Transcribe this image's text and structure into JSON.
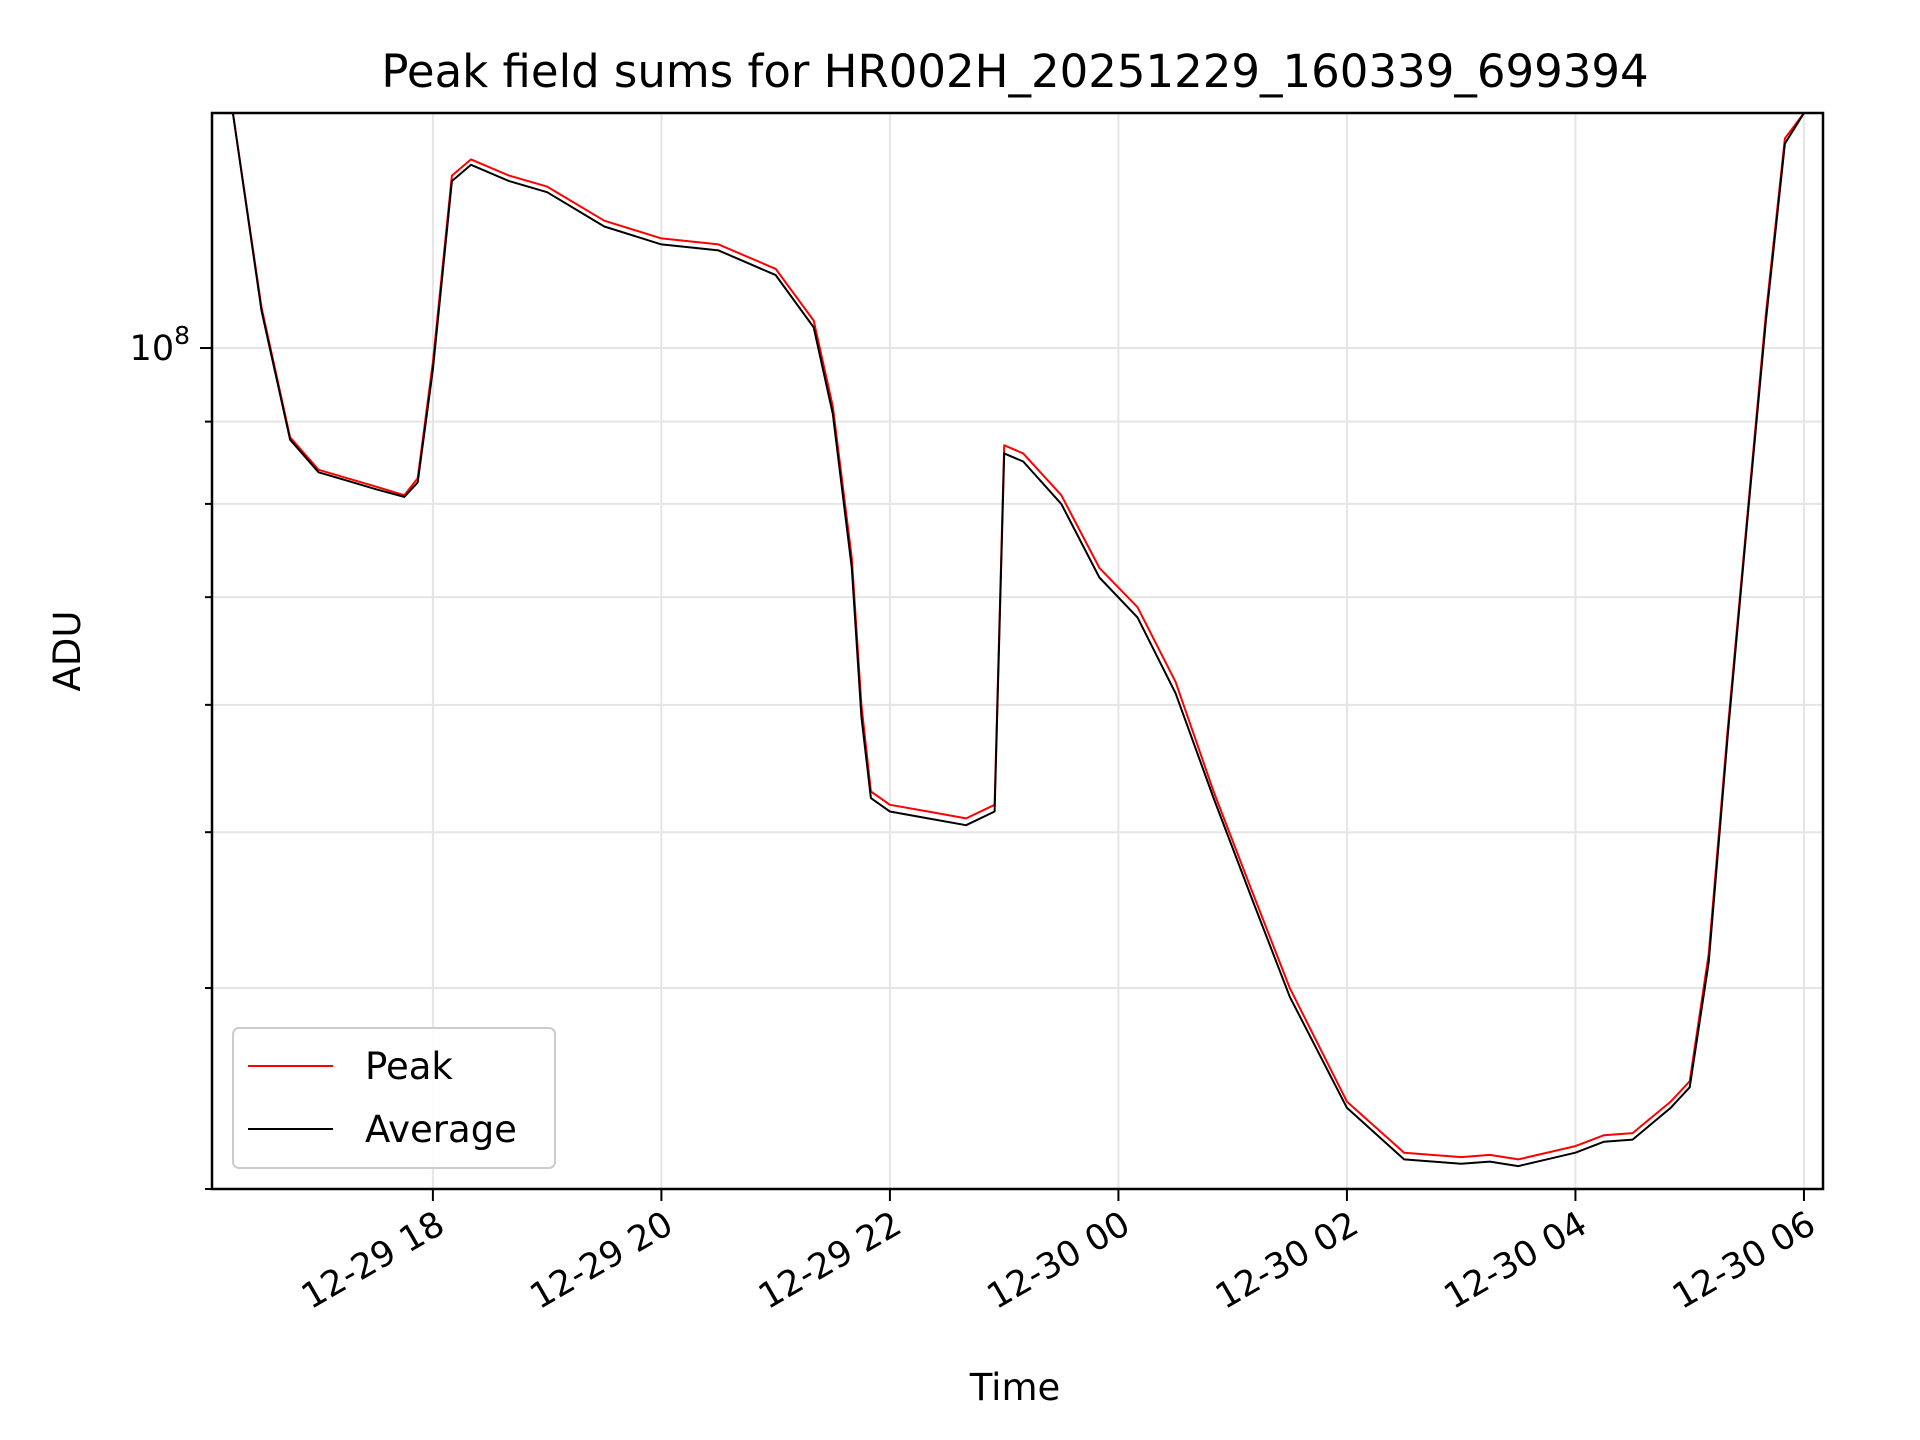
{
  "chart_data": {
    "type": "line",
    "title": "Peak field sums for HR002H_20251229_160339_699394",
    "xlabel": "Time",
    "ylabel": "ADU",
    "y_scale": "log",
    "ylim": [
      30000000,
      140000000
    ],
    "xlim": [
      "2025-12-29 16:04",
      "2025-12-30 06:10"
    ],
    "x_ticks": [
      "2025-12-29 18:00",
      "2025-12-29 20:00",
      "2025-12-29 22:00",
      "2025-12-30 00:00",
      "2025-12-30 02:00",
      "2025-12-30 04:00",
      "2025-12-30 06:00"
    ],
    "x_tick_labels": [
      "12-29 18",
      "12-29 20",
      "12-29 22",
      "12-30 00",
      "12-30 02",
      "12-30 04",
      "12-30 06"
    ],
    "y_major_tick_label": "10",
    "y_major_tick_exponent": "8",
    "grid": true,
    "legend_position": "lower-left",
    "series": [
      {
        "name": "Peak",
        "color": "#ff0000",
        "x": [
          "2025-12-29 16:15",
          "2025-12-29 16:30",
          "2025-12-29 16:45",
          "2025-12-29 17:00",
          "2025-12-29 17:15",
          "2025-12-29 17:30",
          "2025-12-29 17:45",
          "2025-12-29 17:52",
          "2025-12-29 18:00",
          "2025-12-29 18:10",
          "2025-12-29 18:20",
          "2025-12-29 18:40",
          "2025-12-29 19:00",
          "2025-12-29 19:30",
          "2025-12-29 20:00",
          "2025-12-29 20:30",
          "2025-12-29 21:00",
          "2025-12-29 21:20",
          "2025-12-29 21:30",
          "2025-12-29 21:40",
          "2025-12-29 21:45",
          "2025-12-29 21:50",
          "2025-12-29 22:00",
          "2025-12-29 22:20",
          "2025-12-29 22:40",
          "2025-12-29 22:55",
          "2025-12-29 23:00",
          "2025-12-29 23:10",
          "2025-12-29 23:30",
          "2025-12-29 23:50",
          "2025-12-30 00:10",
          "2025-12-30 00:30",
          "2025-12-30 00:50",
          "2025-12-30 01:10",
          "2025-12-30 01:30",
          "2025-12-30 02:00",
          "2025-12-30 02:30",
          "2025-12-30 03:00",
          "2025-12-30 03:15",
          "2025-12-30 03:30",
          "2025-12-30 04:00",
          "2025-12-30 04:15",
          "2025-12-30 04:30",
          "2025-12-30 04:50",
          "2025-12-30 05:00",
          "2025-12-30 05:10",
          "2025-12-30 05:20",
          "2025-12-30 05:30",
          "2025-12-30 05:40",
          "2025-12-30 05:50",
          "2025-12-30 06:00"
        ],
        "y": [
          140000000,
          106000000,
          88000000,
          84000000,
          83000000,
          82000000,
          81000000,
          83000000,
          98000000,
          128000000,
          131000000,
          128000000,
          126000000,
          120000000,
          117000000,
          116000000,
          112000000,
          104000000,
          92000000,
          74000000,
          60000000,
          53000000,
          52000000,
          51500000,
          51000000,
          52000000,
          87000000,
          86000000,
          81000000,
          73000000,
          69000000,
          62000000,
          53000000,
          46000000,
          40000000,
          34000000,
          31600000,
          31400000,
          31500000,
          31300000,
          31900000,
          32400000,
          32500000,
          34000000,
          35000000,
          42000000,
          58000000,
          78000000,
          105000000,
          135000000,
          140000000
        ]
      },
      {
        "name": "Average",
        "color": "#000000",
        "x": [
          "2025-12-29 16:15",
          "2025-12-29 16:30",
          "2025-12-29 16:45",
          "2025-12-29 17:00",
          "2025-12-29 17:15",
          "2025-12-29 17:30",
          "2025-12-29 17:45",
          "2025-12-29 17:52",
          "2025-12-29 18:00",
          "2025-12-29 18:10",
          "2025-12-29 18:20",
          "2025-12-29 18:40",
          "2025-12-29 19:00",
          "2025-12-29 19:30",
          "2025-12-29 20:00",
          "2025-12-29 20:30",
          "2025-12-29 21:00",
          "2025-12-29 21:20",
          "2025-12-29 21:30",
          "2025-12-29 21:40",
          "2025-12-29 21:45",
          "2025-12-29 21:50",
          "2025-12-29 22:00",
          "2025-12-29 22:20",
          "2025-12-29 22:40",
          "2025-12-29 22:55",
          "2025-12-29 23:00",
          "2025-12-29 23:10",
          "2025-12-29 23:30",
          "2025-12-29 23:50",
          "2025-12-30 00:10",
          "2025-12-30 00:30",
          "2025-12-30 00:50",
          "2025-12-30 01:10",
          "2025-12-30 01:30",
          "2025-12-30 02:00",
          "2025-12-30 02:30",
          "2025-12-30 03:00",
          "2025-12-30 03:15",
          "2025-12-30 03:30",
          "2025-12-30 04:00",
          "2025-12-30 04:15",
          "2025-12-30 04:30",
          "2025-12-30 04:50",
          "2025-12-30 05:00",
          "2025-12-30 05:10",
          "2025-12-30 05:20",
          "2025-12-30 05:30",
          "2025-12-30 05:40",
          "2025-12-30 05:50",
          "2025-12-30 06:00"
        ],
        "y": [
          140000000,
          105500000,
          87700000,
          83700000,
          82700000,
          81700000,
          80800000,
          82500000,
          97000000,
          127000000,
          130000000,
          127000000,
          125000000,
          119000000,
          116000000,
          115000000,
          111000000,
          103000000,
          91000000,
          73000000,
          59000000,
          52500000,
          51500000,
          51000000,
          50500000,
          51500000,
          86000000,
          85000000,
          80000000,
          72000000,
          68000000,
          61000000,
          52500000,
          45500000,
          39500000,
          33700000,
          31300000,
          31100000,
          31200000,
          31000000,
          31600000,
          32100000,
          32200000,
          33700000,
          34700000,
          41500000,
          57500000,
          77500000,
          104000000,
          134000000,
          140000000
        ]
      }
    ]
  }
}
